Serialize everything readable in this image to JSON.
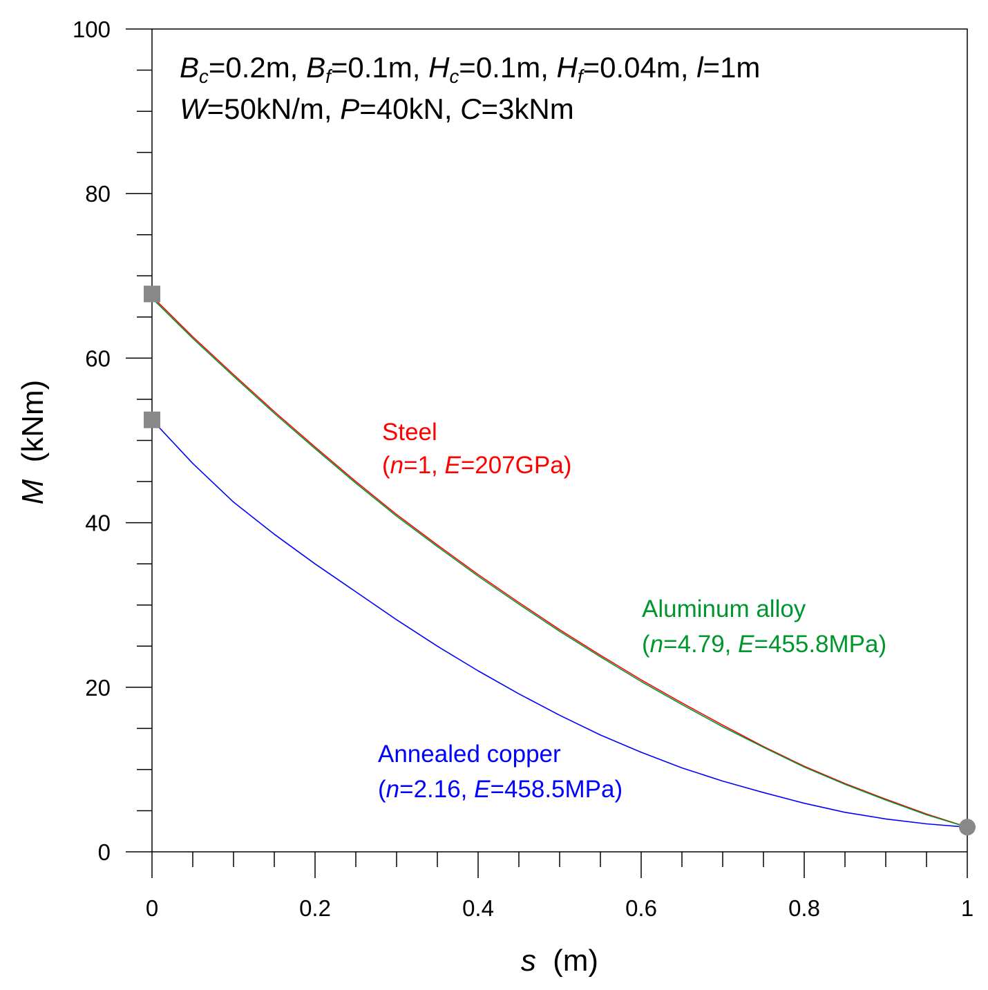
{
  "chart_data": {
    "type": "line",
    "xlabel_var": "s",
    "xlabel_unit": "(m)",
    "ylabel_var": "M",
    "ylabel_unit": "(kNm)",
    "xlim": [
      0,
      1
    ],
    "ylim": [
      0,
      100
    ],
    "x_ticks": [
      0,
      0.2,
      0.4,
      0.6,
      0.8,
      1
    ],
    "x_tick_labels": [
      "0",
      "0.2",
      "0.4",
      "0.6",
      "0.8",
      "1"
    ],
    "x_minor_step": 0.05,
    "y_ticks": [
      0,
      20,
      40,
      60,
      80,
      100
    ],
    "y_tick_labels": [
      "0",
      "20",
      "40",
      "60",
      "80",
      "100"
    ],
    "y_minor_step": 5,
    "params": {
      "line1": [
        {
          "t": "B",
          "i": true
        },
        {
          "t": "c",
          "i": true,
          "sub": true
        },
        {
          "t": "=0.2m, "
        },
        {
          "t": "B",
          "i": true
        },
        {
          "t": "f",
          "i": true,
          "sub": true
        },
        {
          "t": "=0.1m, "
        },
        {
          "t": "H",
          "i": true
        },
        {
          "t": "c",
          "i": true,
          "sub": true
        },
        {
          "t": "=0.1m, "
        },
        {
          "t": "H",
          "i": true
        },
        {
          "t": "f",
          "i": true,
          "sub": true
        },
        {
          "t": "=0.04m, "
        },
        {
          "t": "l",
          "i": true
        },
        {
          "t": "=1m"
        }
      ],
      "line2": [
        {
          "t": "W",
          "i": true
        },
        {
          "t": "=50kN/m, "
        },
        {
          "t": "P",
          "i": true
        },
        {
          "t": "=40kN, "
        },
        {
          "t": "C",
          "i": true
        },
        {
          "t": "=3kNm"
        }
      ]
    },
    "series": [
      {
        "name": "Steel",
        "color": "#ff0000",
        "label_line1": "Steel",
        "label_line2": [
          {
            "t": "("
          },
          {
            "t": "n",
            "i": true
          },
          {
            "t": "=1, "
          },
          {
            "t": "E",
            "i": true
          },
          {
            "t": "=207GPa)"
          }
        ],
        "x": [
          0,
          0.05,
          0.1,
          0.15,
          0.2,
          0.25,
          0.3,
          0.35,
          0.4,
          0.45,
          0.5,
          0.55,
          0.6,
          0.65,
          0.7,
          0.75,
          0.8,
          0.85,
          0.9,
          0.95,
          1.0
        ],
        "values": [
          67.5,
          62.6,
          58.0,
          53.5,
          49.2,
          45.0,
          41.0,
          37.3,
          33.7,
          30.3,
          27.0,
          23.9,
          20.9,
          18.1,
          15.4,
          12.8,
          10.4,
          8.3,
          6.4,
          4.6,
          3.0
        ]
      },
      {
        "name": "Aluminum alloy",
        "color": "#00962e",
        "label_line1": "Aluminum alloy",
        "label_line2": [
          {
            "t": "("
          },
          {
            "t": "n",
            "i": true
          },
          {
            "t": "=4.79, "
          },
          {
            "t": "E",
            "i": true
          },
          {
            "t": "=455.8MPa)"
          }
        ],
        "x": [
          0,
          0.05,
          0.1,
          0.15,
          0.2,
          0.25,
          0.3,
          0.35,
          0.4,
          0.45,
          0.5,
          0.55,
          0.6,
          0.65,
          0.7,
          0.75,
          0.8,
          0.85,
          0.9,
          0.95,
          1.0
        ],
        "values": [
          67.3,
          62.4,
          57.8,
          53.3,
          49.0,
          44.8,
          40.8,
          37.1,
          33.5,
          30.1,
          26.8,
          23.7,
          20.7,
          17.9,
          15.2,
          12.7,
          10.3,
          8.2,
          6.3,
          4.5,
          3.0
        ]
      },
      {
        "name": "Annealed copper",
        "color": "#0000ff",
        "label_line1": "Annealed copper",
        "label_line2": [
          {
            "t": "("
          },
          {
            "t": "n",
            "i": true
          },
          {
            "t": "=2.16, "
          },
          {
            "t": "E",
            "i": true
          },
          {
            "t": "=458.5MPa)"
          }
        ],
        "x": [
          0,
          0.05,
          0.1,
          0.15,
          0.2,
          0.25,
          0.3,
          0.35,
          0.4,
          0.45,
          0.5,
          0.55,
          0.6,
          0.65,
          0.7,
          0.75,
          0.8,
          0.85,
          0.9,
          0.95,
          1.0
        ],
        "values": [
          52.5,
          47.2,
          42.5,
          38.6,
          35.0,
          31.6,
          28.2,
          25.0,
          22.0,
          19.2,
          16.6,
          14.2,
          12.1,
          10.2,
          8.6,
          7.2,
          5.9,
          4.8,
          4.0,
          3.4,
          3.0
        ]
      }
    ],
    "markers": [
      {
        "shape": "square",
        "x": 0,
        "y": 67.8,
        "color": "#888888"
      },
      {
        "shape": "square",
        "x": 0,
        "y": 52.5,
        "color": "#888888"
      },
      {
        "shape": "circle",
        "x": 1,
        "y": 3.0,
        "color": "#888888"
      }
    ]
  }
}
